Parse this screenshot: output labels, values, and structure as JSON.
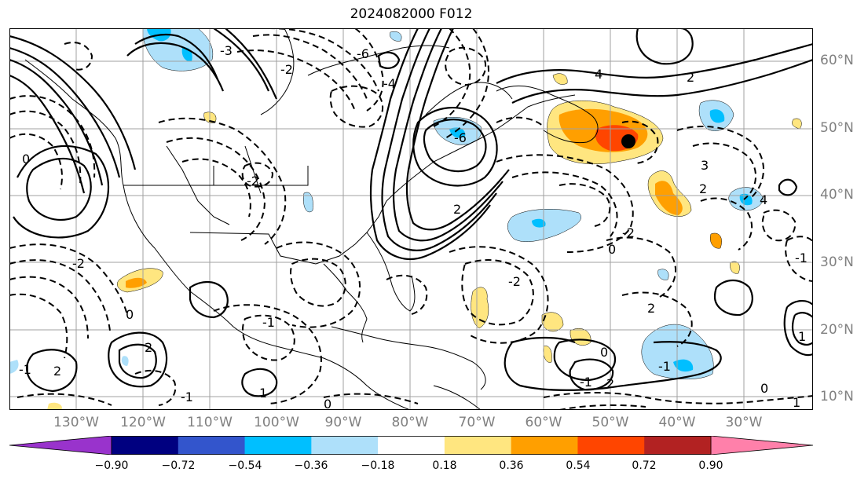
{
  "title": "2024082000 F012",
  "lat_labels": [
    "60°N",
    "50°N",
    "40°N",
    "30°N",
    "20°N",
    "10°N"
  ],
  "lon_labels": [
    "130°W",
    "120°W",
    "110°W",
    "100°W",
    "90°W",
    "80°W",
    "70°W",
    "60°W",
    "50°W",
    "40°W",
    "30°W"
  ],
  "colorbar": {
    "ticks": [
      "−0.90",
      "−0.72",
      "−0.54",
      "−0.36",
      "−0.18",
      "0.18",
      "0.36",
      "0.54",
      "0.72",
      "0.90"
    ],
    "colors": [
      "#9933cc",
      "#000080",
      "#3355cc",
      "#00bfff",
      "#aee0fa",
      "#ffffff",
      "#ffe680",
      "#ff9f00",
      "#ff4500",
      "#b22222",
      "#ff80aa"
    ]
  },
  "contour_labels": [
    "-6",
    "-4",
    "-6",
    "4",
    "2",
    "-3",
    "-2",
    "-2",
    "2",
    "-2",
    "0",
    "-1",
    "1",
    "2",
    "0",
    "-1",
    "2",
    "-1",
    "0",
    "-2",
    "3",
    "4",
    "2",
    "0",
    "-2",
    "2",
    "-1",
    "0",
    "2",
    "-1",
    "0",
    "1",
    "-1",
    "1"
  ],
  "marker": "storm-center"
}
